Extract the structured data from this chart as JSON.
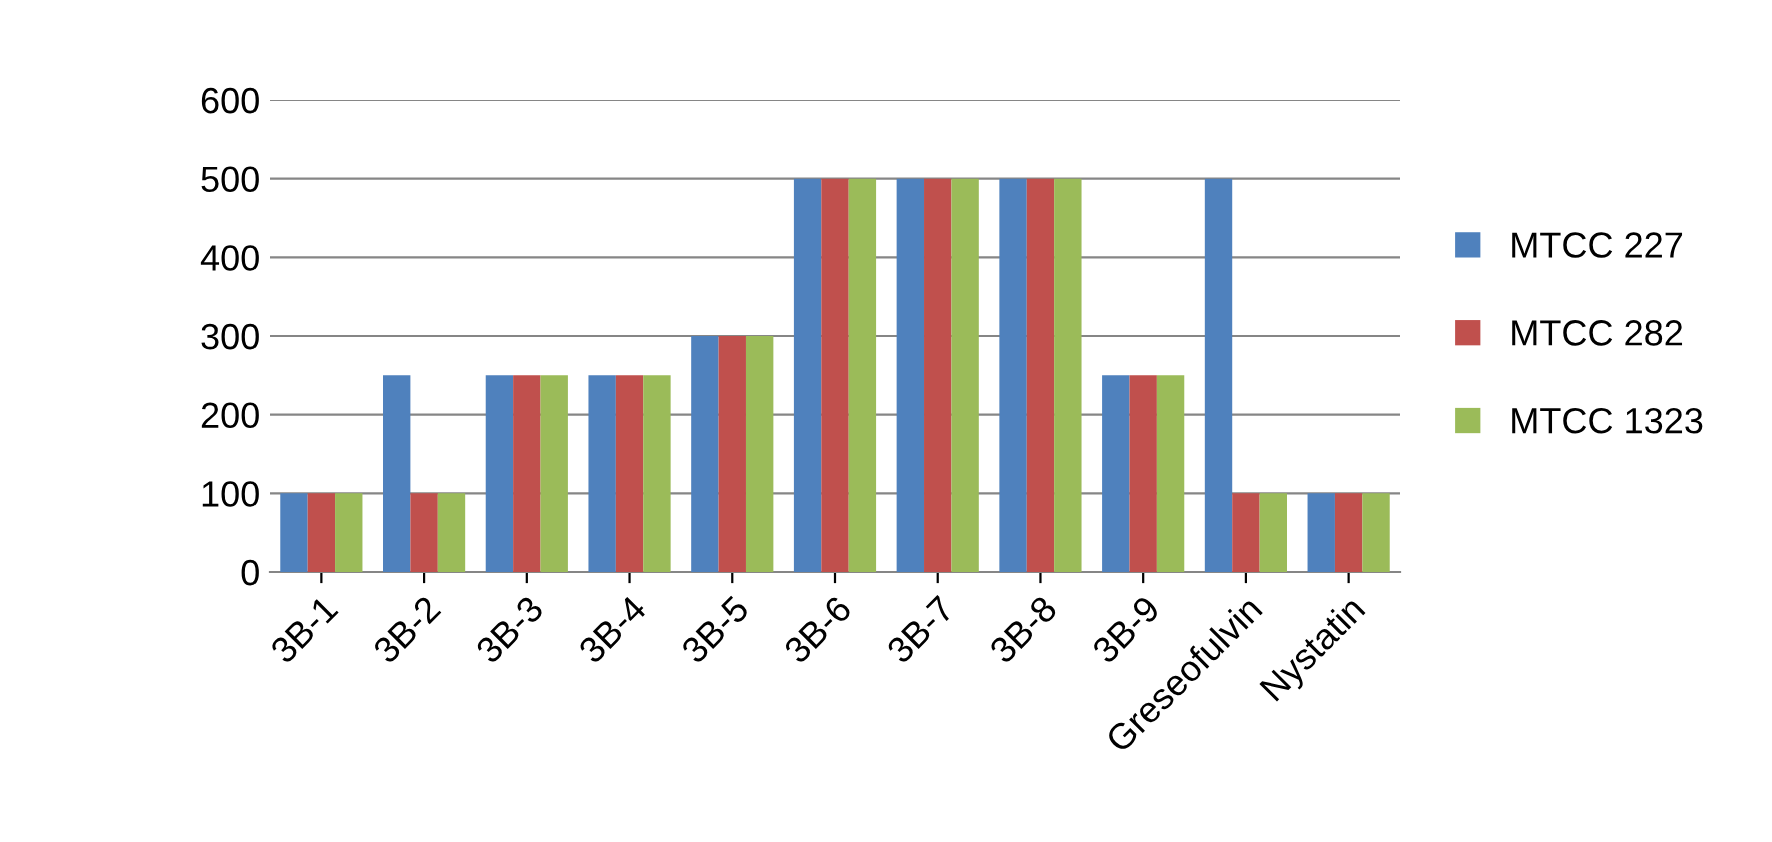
{
  "chart_data": {
    "type": "bar",
    "categories": [
      "3B-1",
      "3B-2",
      "3B-3",
      "3B-4",
      "3B-5",
      "3B-6",
      "3B-7",
      "3B-8",
      "3B-9",
      "Greseofulvin",
      "Nystatin"
    ],
    "series": [
      {
        "name": "MTCC 227",
        "color": "#4f81bd",
        "values": [
          100,
          250,
          250,
          250,
          300,
          500,
          500,
          500,
          250,
          500,
          100
        ]
      },
      {
        "name": "MTCC 282",
        "color": "#c0504d",
        "values": [
          100,
          100,
          250,
          250,
          300,
          500,
          500,
          500,
          250,
          100,
          100
        ]
      },
      {
        "name": "MTCC 1323",
        "color": "#9bbb59",
        "values": [
          100,
          100,
          250,
          250,
          300,
          500,
          500,
          500,
          250,
          100,
          100
        ]
      }
    ],
    "ylim": [
      0,
      600
    ],
    "yticks": [
      0,
      100,
      200,
      300,
      400,
      500,
      600
    ],
    "grid": "y",
    "legend": "right"
  }
}
